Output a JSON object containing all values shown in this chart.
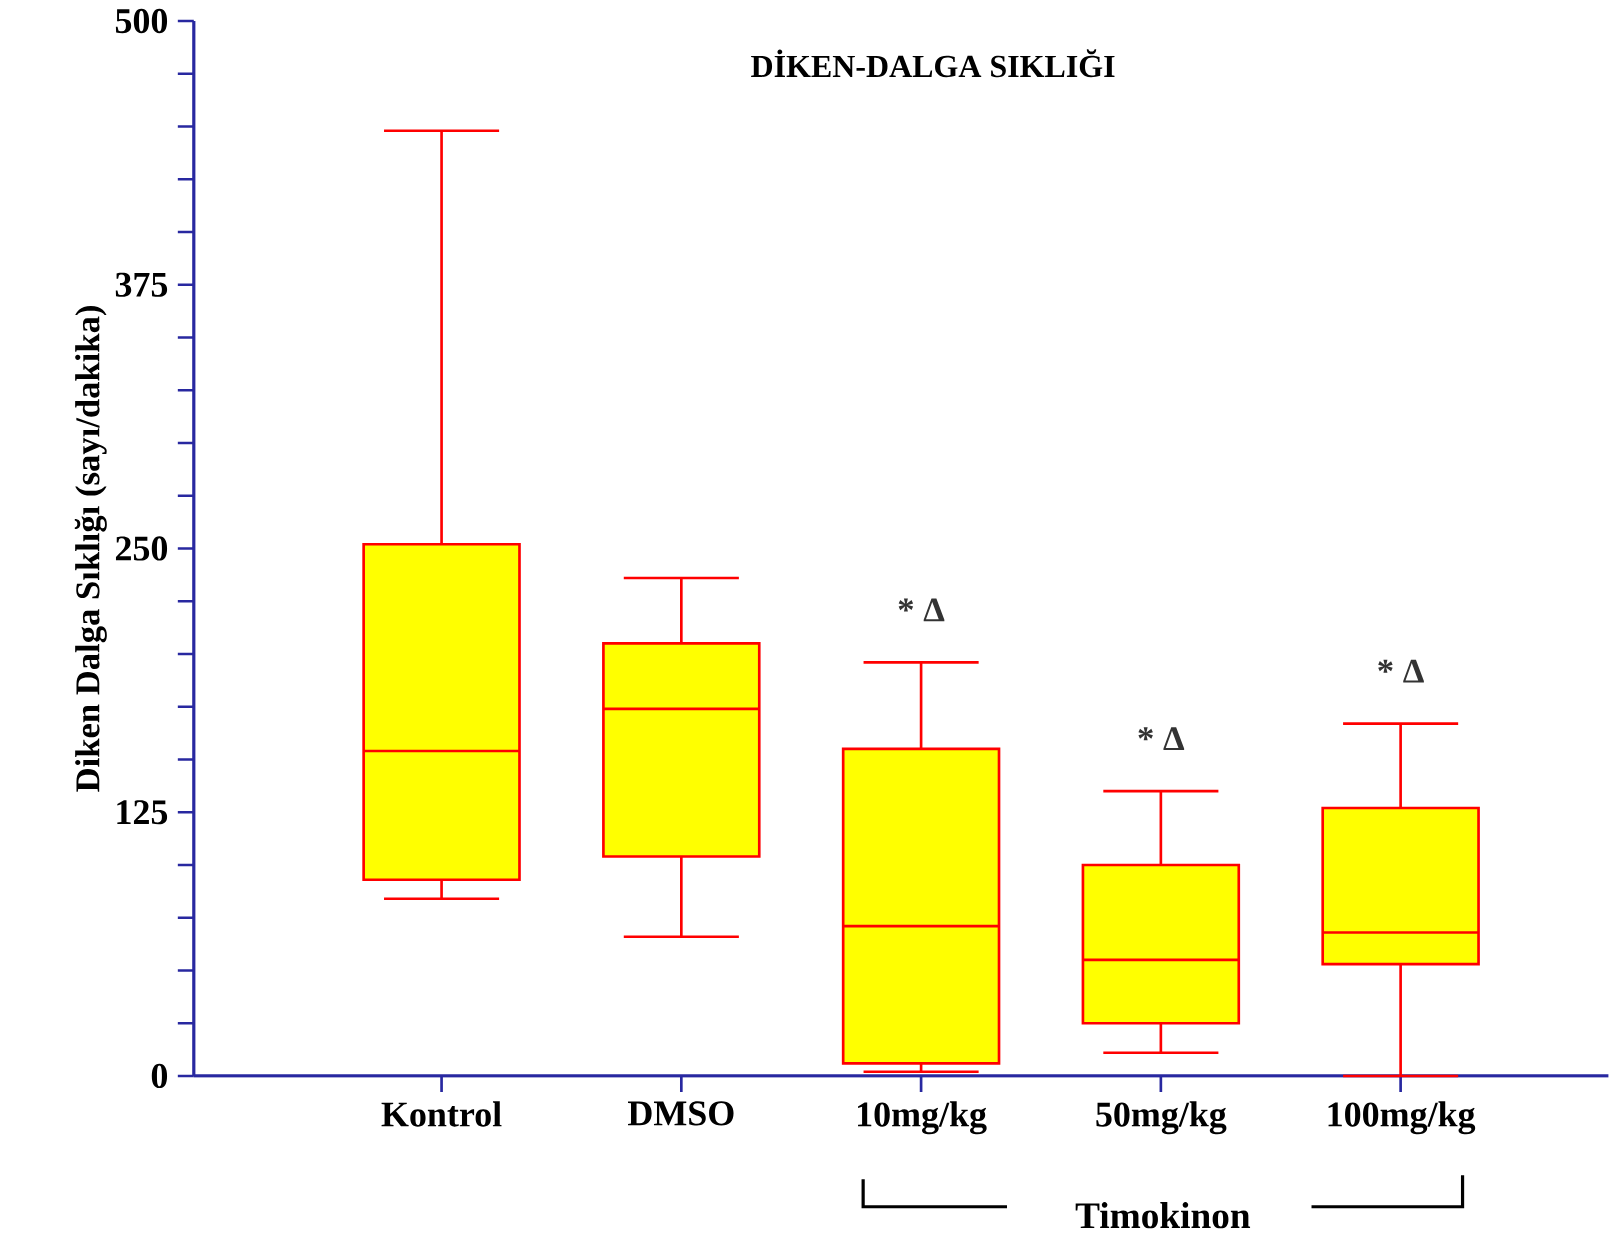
{
  "chart_data": {
    "type": "box",
    "title": "DİKEN-DALGA SIKLIĞI",
    "ylabel": "Diken  Dalga Sıklığı (sayı/dakika)",
    "categories": [
      "Kontrol",
      "DMSO",
      "10mg/kg",
      "50mg/kg",
      "100mg/kg"
    ],
    "series": [
      {
        "color": "#ffff00",
        "boxes": [
          {
            "low": 84,
            "q1": 93,
            "median": 154,
            "q3": 252,
            "high": 448
          },
          {
            "low": 66,
            "q1": 104,
            "median": 174,
            "q3": 205,
            "high": 236
          },
          {
            "low": 2,
            "q1": 6,
            "median": 71,
            "q3": 155,
            "high": 196
          },
          {
            "low": 11,
            "q1": 25,
            "median": 55,
            "q3": 100,
            "high": 135
          },
          {
            "low": 0,
            "q1": 53,
            "median": 68,
            "q3": 127,
            "high": 167
          }
        ]
      }
    ],
    "ylim": [
      0,
      500
    ],
    "yticks": [
      0,
      {
        "value": 25,
        "label": null
      },
      {
        "value": 50,
        "label": null
      },
      {
        "value": 75,
        "label": null
      },
      {
        "value": 100,
        "label": null
      },
      125,
      {
        "value": 150,
        "label": null
      },
      {
        "value": 175,
        "label": null
      },
      {
        "value": 200,
        "label": null
      },
      {
        "value": 225,
        "label": null
      },
      250,
      {
        "value": 275,
        "label": null
      },
      {
        "value": 300,
        "label": null
      },
      {
        "value": 325,
        "label": null
      },
      {
        "value": 350,
        "label": null
      },
      375,
      {
        "value": 400,
        "label": null
      },
      {
        "value": 425,
        "label": null
      },
      {
        "value": 450,
        "label": null
      },
      {
        "value": 475,
        "label": null
      },
      500
    ],
    "grid": false,
    "annotations": [
      "* Δ",
      "* Δ",
      "* Δ",
      "Timokinon"
    ]
  }
}
